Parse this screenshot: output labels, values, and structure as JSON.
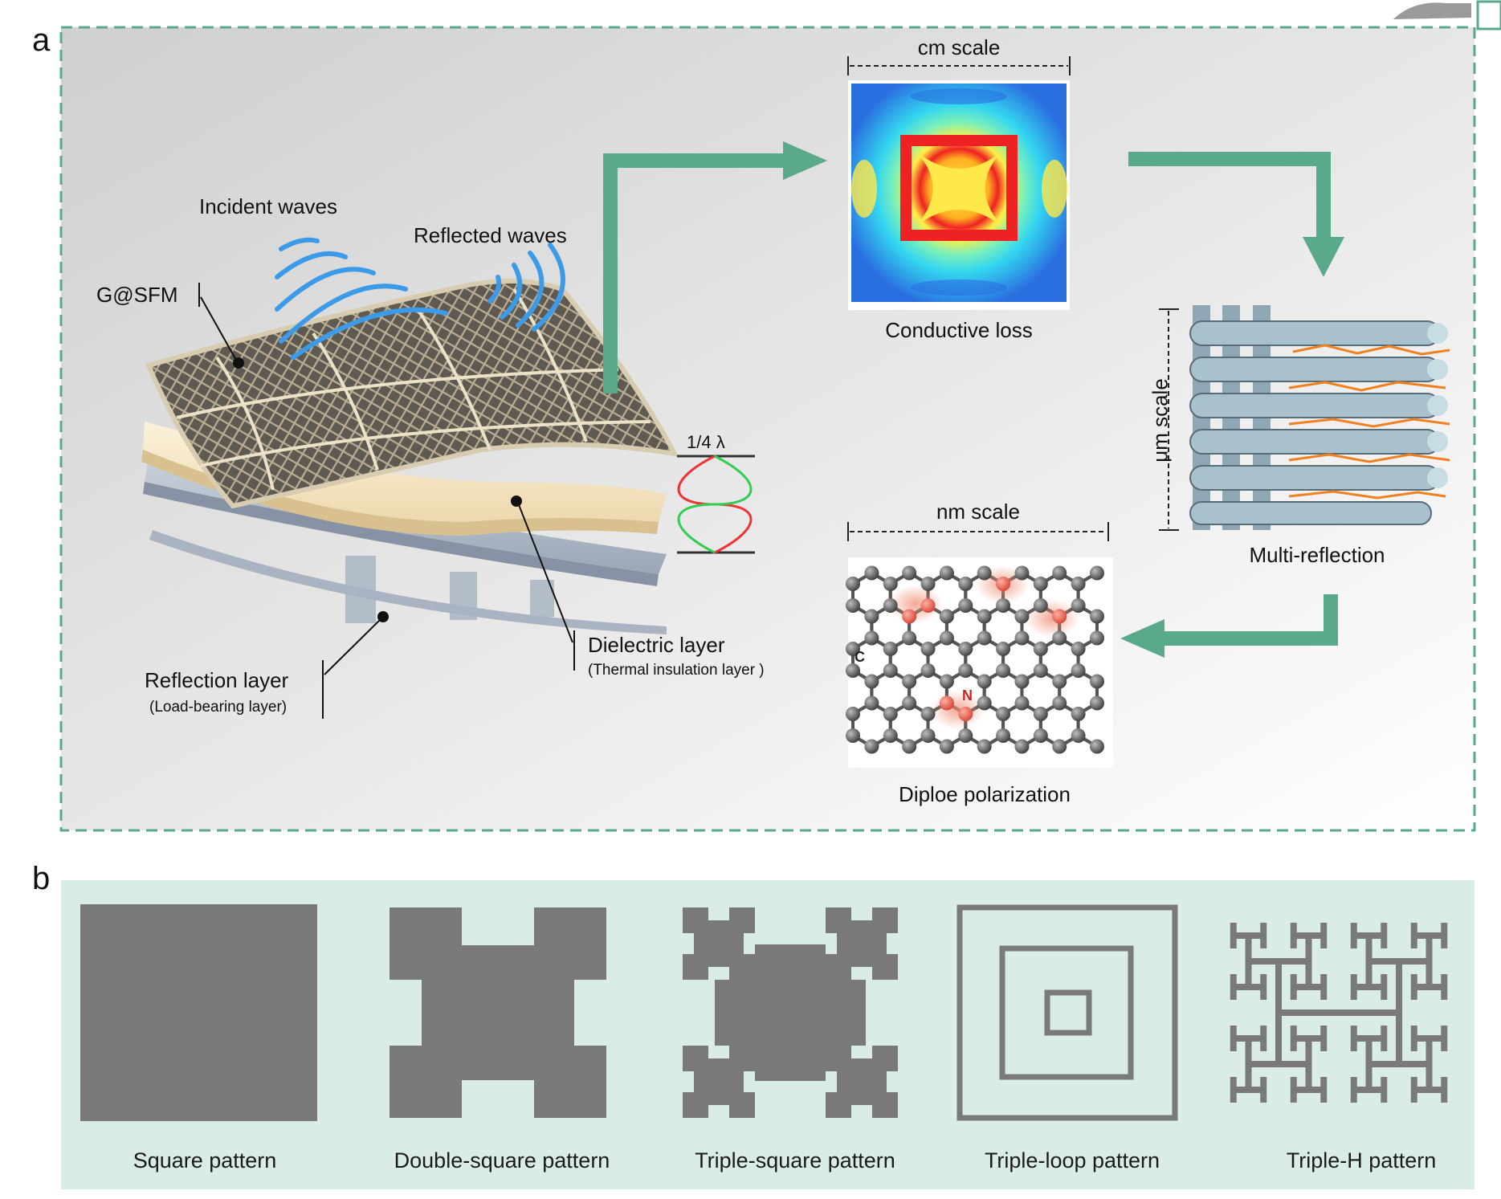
{
  "panel_a": {
    "letter": "a",
    "labels": {
      "incident": "Incident waves",
      "reflected": "Reflected waves",
      "gsfm": "G@SFM",
      "quarter_lambda": "1/4 λ",
      "dielectric": "Dielectric layer",
      "dielectric_sub": "(Thermal insulation layer )",
      "reflection": "Reflection layer",
      "reflection_sub": "(Load-bearing layer)",
      "cm_scale": "cm scale",
      "conductive_loss": "Conductive loss",
      "um_scale": "μm scale",
      "multi_reflection": "Multi-reflection",
      "nm_scale": "nm scale",
      "dipole": "Diploe polarization",
      "atom_c": "C",
      "atom_n": "N"
    },
    "colors": {
      "arrow": "#5aa98a",
      "border": "#5aa98a"
    }
  },
  "panel_b": {
    "letter": "b",
    "background": "#d9ece6",
    "patterns": [
      {
        "name": "square",
        "label": "Square pattern"
      },
      {
        "name": "double-square",
        "label": "Double-square pattern"
      },
      {
        "name": "triple-square",
        "label": "Triple-square pattern"
      },
      {
        "name": "triple-loop",
        "label": "Triple-loop pattern"
      },
      {
        "name": "triple-h",
        "label": "Triple-H pattern"
      }
    ],
    "pattern_color": "#7a7a7a"
  }
}
